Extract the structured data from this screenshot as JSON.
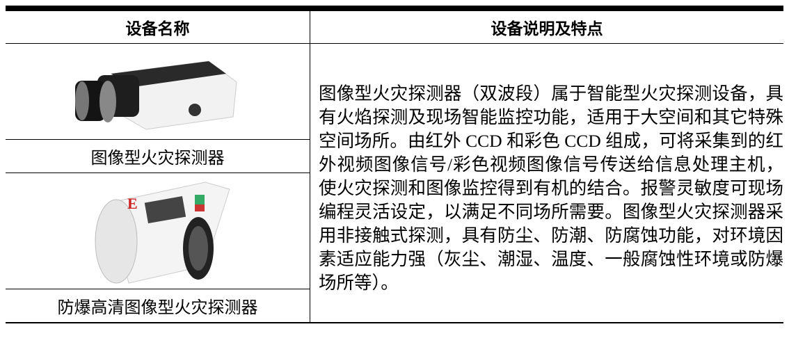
{
  "table": {
    "header": [
      "设备名称",
      "设备说明及特点"
    ],
    "rows": [
      {
        "name": "图像型火灾探测器"
      },
      {
        "name": "防爆高清图像型火灾探测器"
      }
    ],
    "description": "图像型火灾探测器（双波段）属于智能型火灾探测设备，具有火焰探测及现场智能监控功能，适用于大空间和其它特殊空间场所。由红外 CCD 和彩色 CCD 组成，可将采集到的红外视频图像信号/彩色视频图像信号传送给信息处理主机，使火灾探测和图像监控得到有机的结合。报警灵敏度可现场编程灵活设定，以满足不同场所需要。图像型火灾探测器采用非接触式探测，具有防尘、防潮、防腐蚀功能，对环境因素适应能力强（灰尘、潮湿、温度、一般腐蚀性环境或防爆场所等）。"
  }
}
